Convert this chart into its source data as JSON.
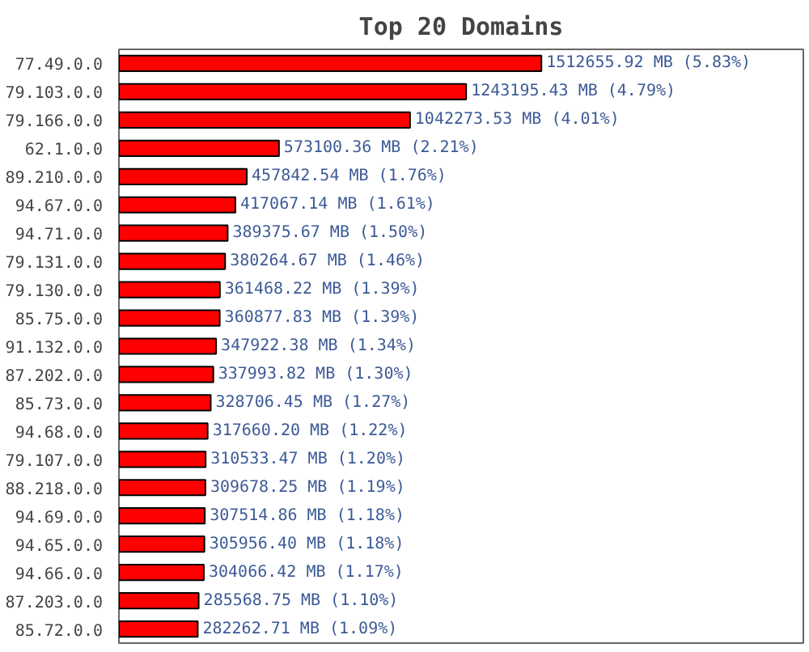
{
  "chart_data": {
    "type": "bar",
    "orientation": "horizontal",
    "title": "Top 20 Domains",
    "categories": [
      "77.49.0.0",
      "79.103.0.0",
      "79.166.0.0",
      "62.1.0.0",
      "89.210.0.0",
      "94.67.0.0",
      "94.71.0.0",
      "79.131.0.0",
      "79.130.0.0",
      "85.75.0.0",
      "91.132.0.0",
      "87.202.0.0",
      "85.73.0.0",
      "94.68.0.0",
      "79.107.0.0",
      "88.218.0.0",
      "94.69.0.0",
      "94.65.0.0",
      "94.66.0.0",
      "87.203.0.0",
      "85.72.0.0"
    ],
    "values": [
      1512655.92,
      1243195.43,
      1042273.53,
      573100.36,
      457842.54,
      417067.14,
      389375.67,
      380264.67,
      361468.22,
      360877.83,
      347922.38,
      337993.82,
      328706.45,
      317660.2,
      310533.47,
      309678.25,
      307514.86,
      305956.4,
      304066.42,
      285568.75,
      282262.71
    ],
    "value_labels": [
      "1512655.92 MB (5.83%)",
      "1243195.43 MB (4.79%)",
      "1042273.53 MB (4.01%)",
      "573100.36 MB (2.21%)",
      "457842.54 MB (1.76%)",
      "417067.14 MB (1.61%)",
      "389375.67 MB (1.50%)",
      "380264.67 MB (1.46%)",
      "361468.22 MB (1.39%)",
      "360877.83 MB (1.39%)",
      "347922.38 MB (1.34%)",
      "337993.82 MB (1.30%)",
      "328706.45 MB (1.27%)",
      "317660.20 MB (1.22%)",
      "310533.47 MB (1.20%)",
      "309678.25 MB (1.19%)",
      "307514.86 MB (1.18%)",
      "305956.40 MB (1.18%)",
      "304066.42 MB (1.17%)",
      "285568.75 MB (1.10%)",
      "282262.71 MB (1.09%)"
    ],
    "color": "#ff0000",
    "tick_labels": "y",
    "grid": false
  }
}
